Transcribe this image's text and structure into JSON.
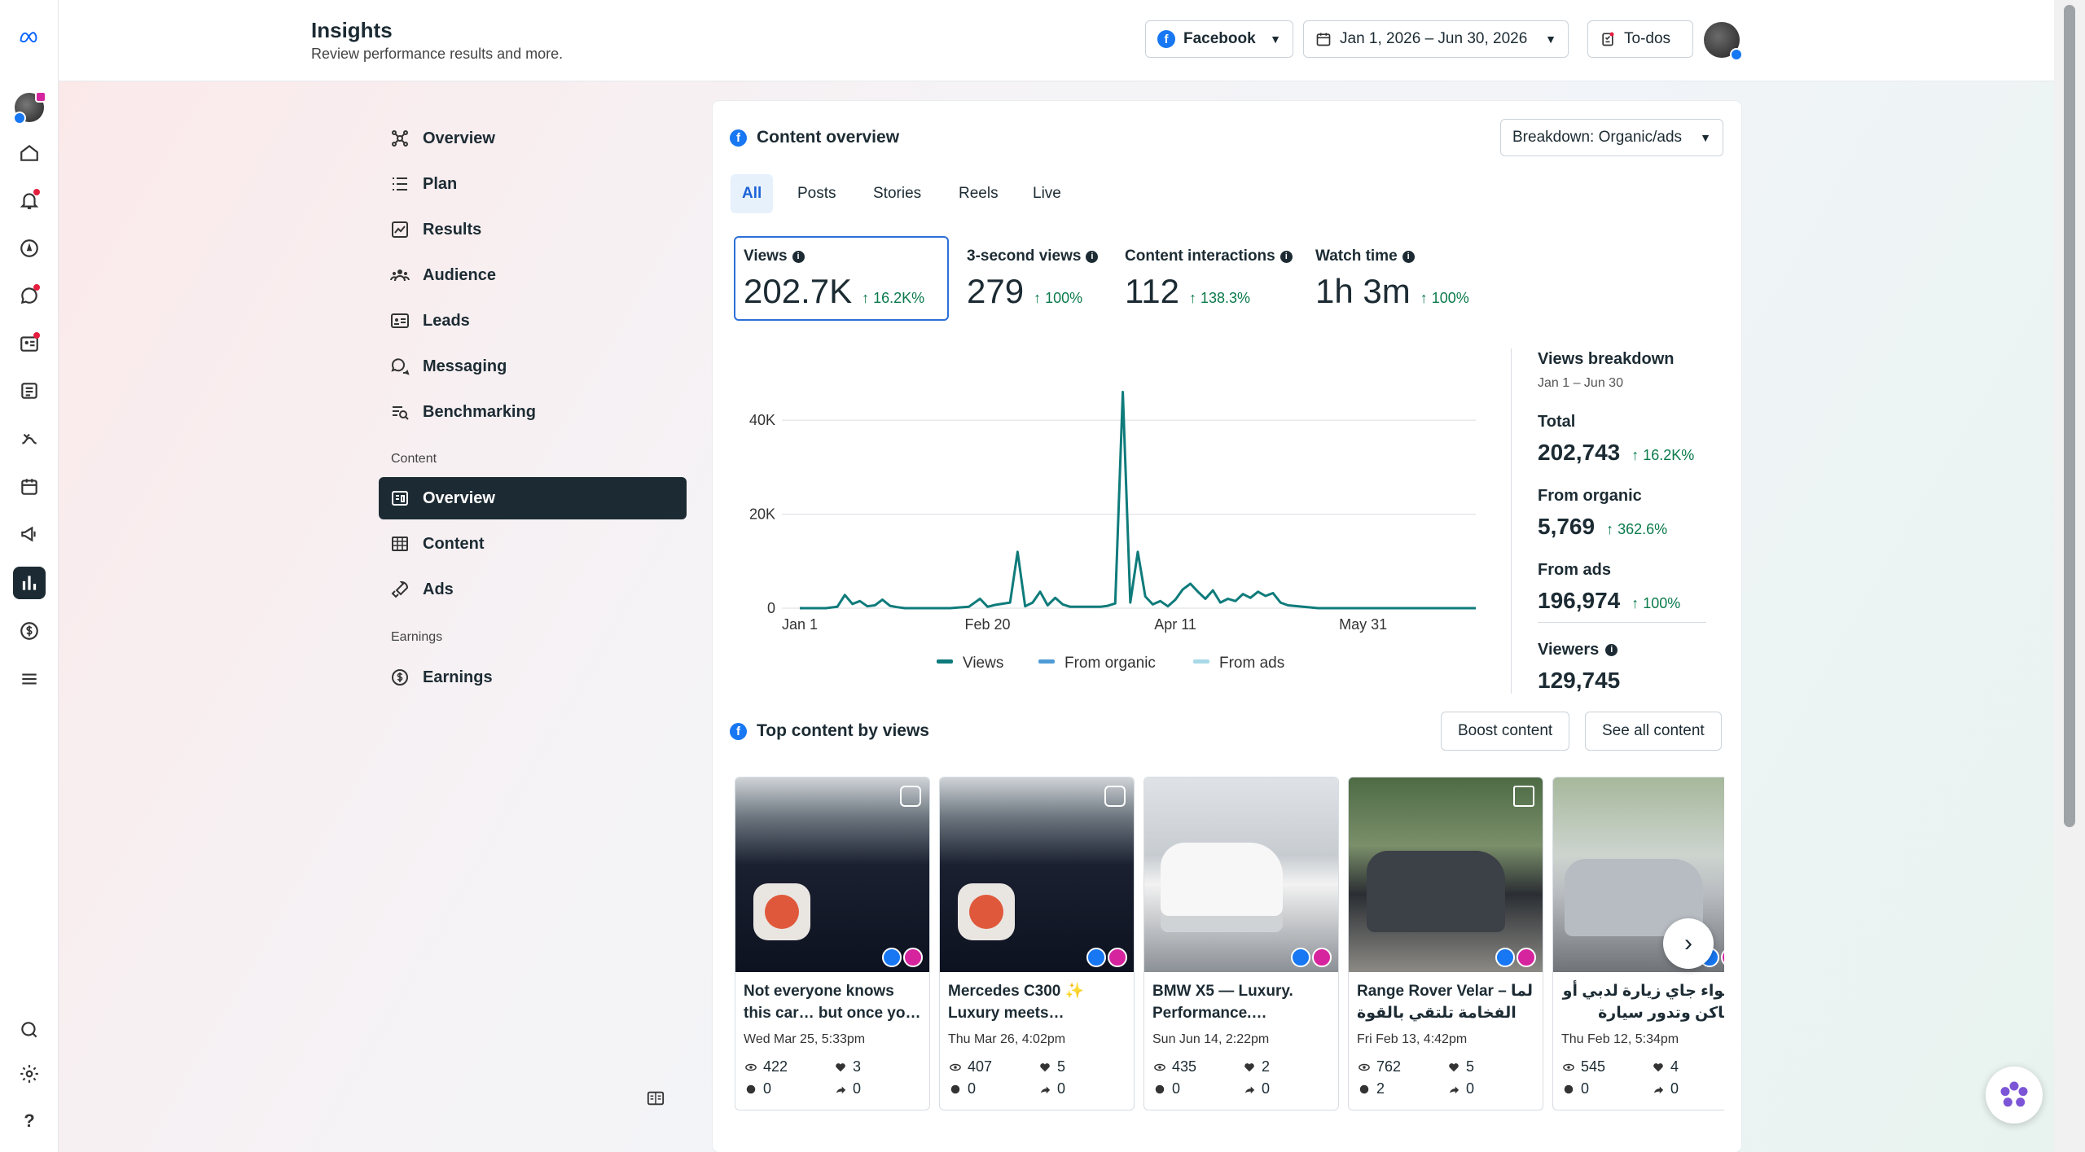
{
  "header": {
    "title": "Insights",
    "subtitle": "Review performance results and more.",
    "platform": "Facebook",
    "date_range": "Jan 1, 2026 – Jun 30, 2026",
    "todos": "To-dos"
  },
  "sidebar": {
    "items": [
      {
        "label": "Overview"
      },
      {
        "label": "Plan"
      },
      {
        "label": "Results"
      },
      {
        "label": "Audience"
      },
      {
        "label": "Leads"
      },
      {
        "label": "Messaging"
      },
      {
        "label": "Benchmarking"
      }
    ],
    "content_section": "Content",
    "content_items": [
      {
        "label": "Overview"
      },
      {
        "label": "Content"
      },
      {
        "label": "Ads"
      }
    ],
    "earnings_section": "Earnings",
    "earnings_items": [
      {
        "label": "Earnings"
      }
    ]
  },
  "content_overview": {
    "title": "Content overview",
    "breakdown": "Breakdown: Organic/ads",
    "tabs": [
      "All",
      "Posts",
      "Stories",
      "Reels",
      "Live"
    ],
    "metrics": [
      {
        "label": "Views",
        "value": "202.7K",
        "change": "16.2K%"
      },
      {
        "label": "3-second views",
        "value": "279",
        "change": "100%"
      },
      {
        "label": "Content interactions",
        "value": "112",
        "change": "138.3%"
      },
      {
        "label": "Watch time",
        "value": "1h 3m",
        "change": "100%"
      }
    ],
    "legend": [
      "Views",
      "From organic",
      "From ads"
    ]
  },
  "views_breakdown": {
    "title": "Views breakdown",
    "range": "Jan 1 – Jun 30",
    "total_label": "Total",
    "total": "202,743",
    "total_change": "16.2K%",
    "organic_label": "From organic",
    "organic": "5,769",
    "organic_change": "362.6%",
    "ads_label": "From ads",
    "ads": "196,974",
    "ads_change": "100%",
    "viewers_label": "Viewers",
    "viewers": "129,745"
  },
  "top_content": {
    "title": "Top content by views",
    "boost": "Boost content",
    "see_all": "See all content",
    "posts": [
      {
        "caption": "Not everyone knows this car… but once yo…",
        "date": "Wed Mar 25, 5:33pm",
        "views": "422",
        "reactions": "3",
        "comments": "0",
        "shares": "0"
      },
      {
        "caption": "Mercedes C300 ✨ Luxury meets…",
        "date": "Thu Mar 26, 4:02pm",
        "views": "407",
        "reactions": "5",
        "comments": "0",
        "shares": "0"
      },
      {
        "caption": "BMW X5 — Luxury. Performance.…",
        "date": "Sun Jun 14, 2:22pm",
        "views": "435",
        "reactions": "2",
        "comments": "0",
        "shares": "0"
      },
      {
        "caption": "Range Rover Velar – لما الفخامة تلتقي بالقوة إذا…",
        "date": "Fri Feb 13, 4:42pm",
        "views": "762",
        "reactions": "5",
        "comments": "2",
        "shares": "0"
      },
      {
        "caption": "سواء جاي زيارة لدبي أو ساكن وتدور سيارة عملية…",
        "date": "Thu Feb 12, 5:34pm",
        "views": "545",
        "reactions": "4",
        "comments": "0",
        "shares": "0"
      }
    ]
  },
  "chart_data": {
    "type": "line",
    "x_ticks": [
      "Jan 1",
      "Feb 20",
      "Apr 11",
      "May 31"
    ],
    "y_ticks": [
      "0",
      "20K",
      "40K"
    ],
    "ylim": [
      0,
      48000
    ],
    "xlim_days": [
      0,
      180
    ],
    "series": [
      {
        "name": "Views",
        "color": "#0f7b7b",
        "points": [
          [
            0,
            0
          ],
          [
            7,
            0
          ],
          [
            10,
            300
          ],
          [
            12,
            2800
          ],
          [
            14,
            900
          ],
          [
            16,
            1500
          ],
          [
            18,
            400
          ],
          [
            20,
            600
          ],
          [
            22,
            1800
          ],
          [
            24,
            500
          ],
          [
            26,
            200
          ],
          [
            28,
            0
          ],
          [
            40,
            0
          ],
          [
            45,
            300
          ],
          [
            48,
            2000
          ],
          [
            50,
            300
          ],
          [
            52,
            700
          ],
          [
            56,
            1200
          ],
          [
            58,
            12000
          ],
          [
            60,
            400
          ],
          [
            62,
            1200
          ],
          [
            64,
            3500
          ],
          [
            66,
            600
          ],
          [
            68,
            2200
          ],
          [
            70,
            800
          ],
          [
            72,
            300
          ],
          [
            80,
            300
          ],
          [
            82,
            500
          ],
          [
            84,
            1000
          ],
          [
            86,
            46000
          ],
          [
            88,
            1200
          ],
          [
            90,
            12000
          ],
          [
            92,
            2500
          ],
          [
            94,
            800
          ],
          [
            96,
            1500
          ],
          [
            98,
            400
          ],
          [
            100,
            1800
          ],
          [
            102,
            4000
          ],
          [
            104,
            5200
          ],
          [
            106,
            3500
          ],
          [
            108,
            2000
          ],
          [
            110,
            3800
          ],
          [
            112,
            1200
          ],
          [
            114,
            2000
          ],
          [
            116,
            1500
          ],
          [
            118,
            3000
          ],
          [
            120,
            2200
          ],
          [
            122,
            3500
          ],
          [
            124,
            2600
          ],
          [
            126,
            3200
          ],
          [
            128,
            1200
          ],
          [
            130,
            600
          ],
          [
            134,
            300
          ],
          [
            138,
            0
          ],
          [
            180,
            0
          ]
        ]
      },
      {
        "name": "From organic",
        "color": "#4e9bd6",
        "points": []
      },
      {
        "name": "From ads",
        "color": "#a8d9e8",
        "points": []
      }
    ]
  }
}
